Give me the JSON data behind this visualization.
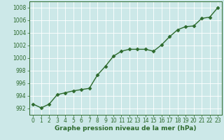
{
  "x": [
    0,
    1,
    2,
    3,
    4,
    5,
    6,
    7,
    8,
    9,
    10,
    11,
    12,
    13,
    14,
    15,
    16,
    17,
    18,
    19,
    20,
    21,
    22,
    23
  ],
  "y": [
    992.7,
    992.1,
    992.7,
    994.2,
    994.5,
    994.8,
    995.0,
    995.2,
    997.3,
    998.7,
    1000.3,
    1001.1,
    1001.4,
    1001.4,
    1001.4,
    1001.1,
    1002.1,
    1003.4,
    1004.5,
    1005.0,
    1005.1,
    1006.3,
    1006.5,
    1008.0
  ],
  "line_color": "#2d6a2d",
  "marker": "D",
  "marker_size": 2.5,
  "linewidth": 1.0,
  "bg_color": "#cce8e8",
  "grid_color": "#ffffff",
  "ylim": [
    991,
    1009
  ],
  "yticks": [
    992,
    994,
    996,
    998,
    1000,
    1002,
    1004,
    1006,
    1008
  ],
  "xlim": [
    -0.5,
    23.5
  ],
  "xticks": [
    0,
    1,
    2,
    3,
    4,
    5,
    6,
    7,
    8,
    9,
    10,
    11,
    12,
    13,
    14,
    15,
    16,
    17,
    18,
    19,
    20,
    21,
    22,
    23
  ],
  "xlabel": "Graphe pression niveau de la mer (hPa)",
  "xlabel_fontsize": 6.5,
  "tick_fontsize": 5.5,
  "tick_color": "#2d6a2d",
  "label_color": "#2d6a2d",
  "spine_color": "#2d6a2d"
}
